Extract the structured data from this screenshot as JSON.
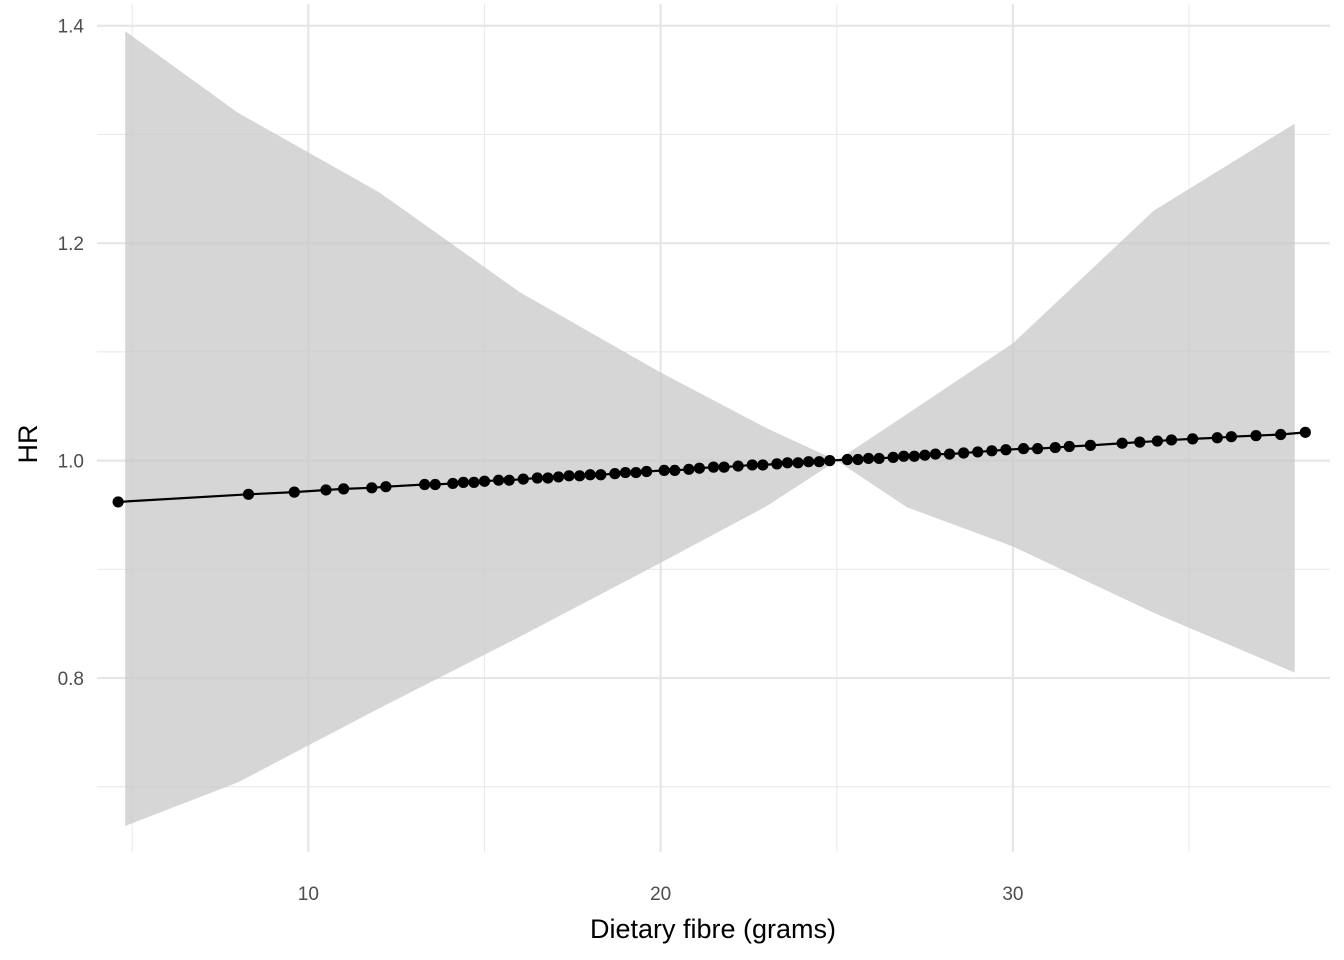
{
  "chart_data": {
    "type": "line",
    "title": "",
    "xlabel": "Dietary fibre (grams)",
    "ylabel": "HR",
    "xlim": [
      4.0,
      39.0
    ],
    "ylim": [
      0.64,
      1.42
    ],
    "x_ticks": [
      10,
      20,
      30
    ],
    "x_tick_labels": [
      "10",
      "20",
      "30"
    ],
    "y_ticks": [
      0.8,
      1.0,
      1.2,
      1.4
    ],
    "y_tick_labels": [
      "0.8",
      "1.0",
      "1.2",
      "1.4"
    ],
    "grid": true,
    "legend": "none",
    "reference_x": 25,
    "ci_band": {
      "x": [
        4.8,
        8.0,
        12.0,
        16.0,
        20.0,
        23.0,
        25.0,
        27.0,
        30.0,
        34.0,
        38.0
      ],
      "lower": [
        0.664,
        0.704,
        0.772,
        0.838,
        0.906,
        0.958,
        1.0,
        0.957,
        0.921,
        0.86,
        0.805
      ],
      "upper": [
        1.395,
        1.32,
        1.247,
        1.155,
        1.081,
        1.03,
        1.0,
        1.043,
        1.108,
        1.23,
        1.31
      ]
    },
    "series": [
      {
        "x": [
          4.6,
          8.3,
          9.6,
          10.5,
          11.0,
          11.8,
          12.2,
          13.3,
          13.6,
          14.1,
          14.4,
          14.7,
          15.0,
          15.4,
          15.7,
          16.1,
          16.5,
          16.8,
          17.1,
          17.4,
          17.7,
          18.0,
          18.3,
          18.7,
          19.0,
          19.3,
          19.6,
          20.1,
          20.4,
          20.8,
          21.1,
          21.5,
          21.8,
          22.2,
          22.6,
          22.9,
          23.3,
          23.6,
          23.9,
          24.2,
          24.5,
          24.8,
          25.3,
          25.6,
          25.9,
          26.2,
          26.6,
          26.9,
          27.2,
          27.5,
          27.8,
          28.2,
          28.6,
          29.0,
          29.4,
          29.8,
          30.3,
          30.7,
          31.2,
          31.6,
          32.2,
          33.1,
          33.6,
          34.1,
          34.5,
          35.1,
          35.8,
          36.2,
          36.9,
          37.6,
          38.3
        ],
        "y": [
          0.962,
          0.969,
          0.971,
          0.973,
          0.974,
          0.975,
          0.976,
          0.978,
          0.978,
          0.979,
          0.98,
          0.98,
          0.981,
          0.982,
          0.982,
          0.983,
          0.984,
          0.984,
          0.985,
          0.986,
          0.986,
          0.987,
          0.987,
          0.988,
          0.989,
          0.989,
          0.99,
          0.991,
          0.991,
          0.992,
          0.993,
          0.994,
          0.994,
          0.995,
          0.996,
          0.996,
          0.997,
          0.998,
          0.998,
          0.999,
          0.999,
          1.0,
          1.001,
          1.001,
          1.002,
          1.002,
          1.003,
          1.004,
          1.004,
          1.005,
          1.006,
          1.006,
          1.007,
          1.008,
          1.009,
          1.01,
          1.011,
          1.011,
          1.012,
          1.013,
          1.014,
          1.016,
          1.017,
          1.018,
          1.019,
          1.02,
          1.021,
          1.022,
          1.023,
          1.024,
          1.026
        ]
      }
    ]
  }
}
